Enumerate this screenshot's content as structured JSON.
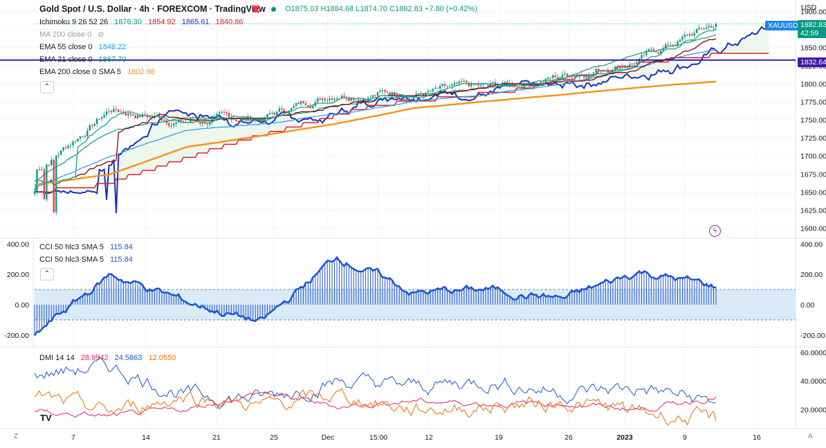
{
  "header": {
    "title": "Gold Spot / U.S. Dollar · 4h · FOREXCOM · TradingView",
    "ohlc": {
      "o": "O1875.03",
      "h": "H1884.68",
      "l": "L1874.70",
      "c": "C1882.83",
      "chg": "+7.80 (+0.42%)"
    }
  },
  "colors": {
    "up": "#089981",
    "down": "#f23645",
    "ema55": "#2196f3",
    "ema21": "#089981",
    "ema200": "#f7931a",
    "ichi_base": "#8b0000",
    "ichi_lead_a": "#1b30c0",
    "ichi_lead_b": "#e0202e",
    "ichi_conv": "#17a589",
    "hline": "#3f19a6",
    "cci": "#1e52d4",
    "cci_band": "#c9e2f7",
    "dmi_plus": "#1e52d4",
    "dmi_minus": "#e91e63",
    "adx": "#ef6c00"
  },
  "legend_main": {
    "ichimoku": {
      "label": "Ichimoku 9 26 52 26",
      "v1": "1876.30",
      "v2": "1854.92",
      "v3": "1865.61",
      "v4": "1840.86"
    },
    "ma200": {
      "label": "MA 200 close 0"
    },
    "ema55": {
      "label": "EMA 55 close 0",
      "value": "1848.22"
    },
    "ema21": {
      "label": "EMA 21 close 0",
      "value": "1867.70"
    },
    "ema200": {
      "label": "EMA 200 close 0 SMA 5",
      "value": "1802.98"
    }
  },
  "legend_cci": [
    {
      "label": "CCI 50 hlc3 SMA 5",
      "value": "115.84"
    },
    {
      "label": "CCI 50 hlc3 SMA 5",
      "value": "115.84"
    }
  ],
  "legend_dmi": {
    "label": "DMI 14 14",
    "v1": "28.9542",
    "v2": "24.5863",
    "v3": "12.0550"
  },
  "price_axis": {
    "ticks": [
      "1900.00",
      "1875.00",
      "1850.00",
      "1825.00",
      "1800.00",
      "1775.00",
      "1750.00",
      "1725.00",
      "1700.00",
      "1675.00",
      "1650.00",
      "1625.00",
      "1600.00"
    ],
    "currency": "USD"
  },
  "price_tags": {
    "symbol": "XAUUSD",
    "last": "1882.83",
    "countdown": "42:59",
    "line": "1832.64"
  },
  "cci_axis": {
    "left": [
      "400.00",
      "200.00",
      "0.00",
      "-200.00"
    ],
    "right": [
      "400.00",
      "200.00",
      "0.00",
      "-200.00"
    ]
  },
  "dmi_axis": {
    "right": [
      "60.0000",
      "40.0000",
      "20.0000"
    ]
  },
  "time_axis": [
    "7",
    "14",
    "21",
    "25",
    "Dec",
    "15:00",
    "12",
    "19",
    "26",
    "2023",
    "9",
    "16"
  ],
  "chart_data": [
    {
      "type": "line",
      "title": "Gold Spot / U.S. Dollar · 4h · FOREXCOM",
      "description_series": "XAUUSD 4h price path with EMA 21, EMA 55, EMA 200 and Ichimoku",
      "ylim": [
        1600,
        1900
      ],
      "x": [
        "7",
        "14",
        "21",
        "25",
        "Dec",
        "12",
        "19",
        "26",
        "2023",
        "9"
      ],
      "series": [
        {
          "name": "XAUUSD close",
          "values": [
            1678,
            1765,
            1748,
            1752,
            1790,
            1788,
            1792,
            1812,
            1835,
            1882.83
          ]
        },
        {
          "name": "EMA 21 close 0",
          "values": [
            1665,
            1735,
            1755,
            1750,
            1770,
            1785,
            1795,
            1810,
            1840,
            1867.7
          ]
        },
        {
          "name": "EMA 55 close 0",
          "values": [
            1655,
            1700,
            1735,
            1745,
            1758,
            1775,
            1785,
            1800,
            1825,
            1848.22
          ]
        },
        {
          "name": "EMA 200 close 0 SMA 5",
          "values": [
            1660,
            1675,
            1712,
            1728,
            1745,
            1766,
            1776,
            1785,
            1795,
            1802.98
          ]
        }
      ],
      "hline": 1832.64
    },
    {
      "type": "line",
      "title": "CCI 50 hlc3 SMA 5",
      "ylim": [
        -250,
        400
      ],
      "band": [
        -100,
        100
      ],
      "x": [
        "7",
        "14",
        "21",
        "25",
        "Dec",
        "12",
        "19",
        "26",
        "2023",
        "9"
      ],
      "series": [
        {
          "name": "CCI 50 hlc3 SMA 5",
          "values": [
            -200,
            200,
            20,
            -120,
            320,
            80,
            100,
            40,
            220,
            115.84
          ]
        }
      ]
    },
    {
      "type": "line",
      "title": "DMI 14 14",
      "ylim": [
        10,
        60
      ],
      "x": [
        "7",
        "14",
        "21",
        "25",
        "Dec",
        "12",
        "19",
        "26",
        "2023",
        "9"
      ],
      "series": [
        {
          "name": "DMI 14 14 +DI",
          "values": [
            45,
            50,
            30,
            28,
            40,
            36,
            40,
            32,
            35,
            24.5863
          ]
        },
        {
          "name": "DMI 14 14 -DI",
          "values": [
            18,
            15,
            20,
            32,
            22,
            26,
            24,
            24,
            20,
            28.9542
          ]
        },
        {
          "name": "DMI 14 14 ADX",
          "values": [
            28,
            18,
            30,
            22,
            30,
            20,
            22,
            25,
            18,
            12.055
          ]
        }
      ]
    }
  ]
}
